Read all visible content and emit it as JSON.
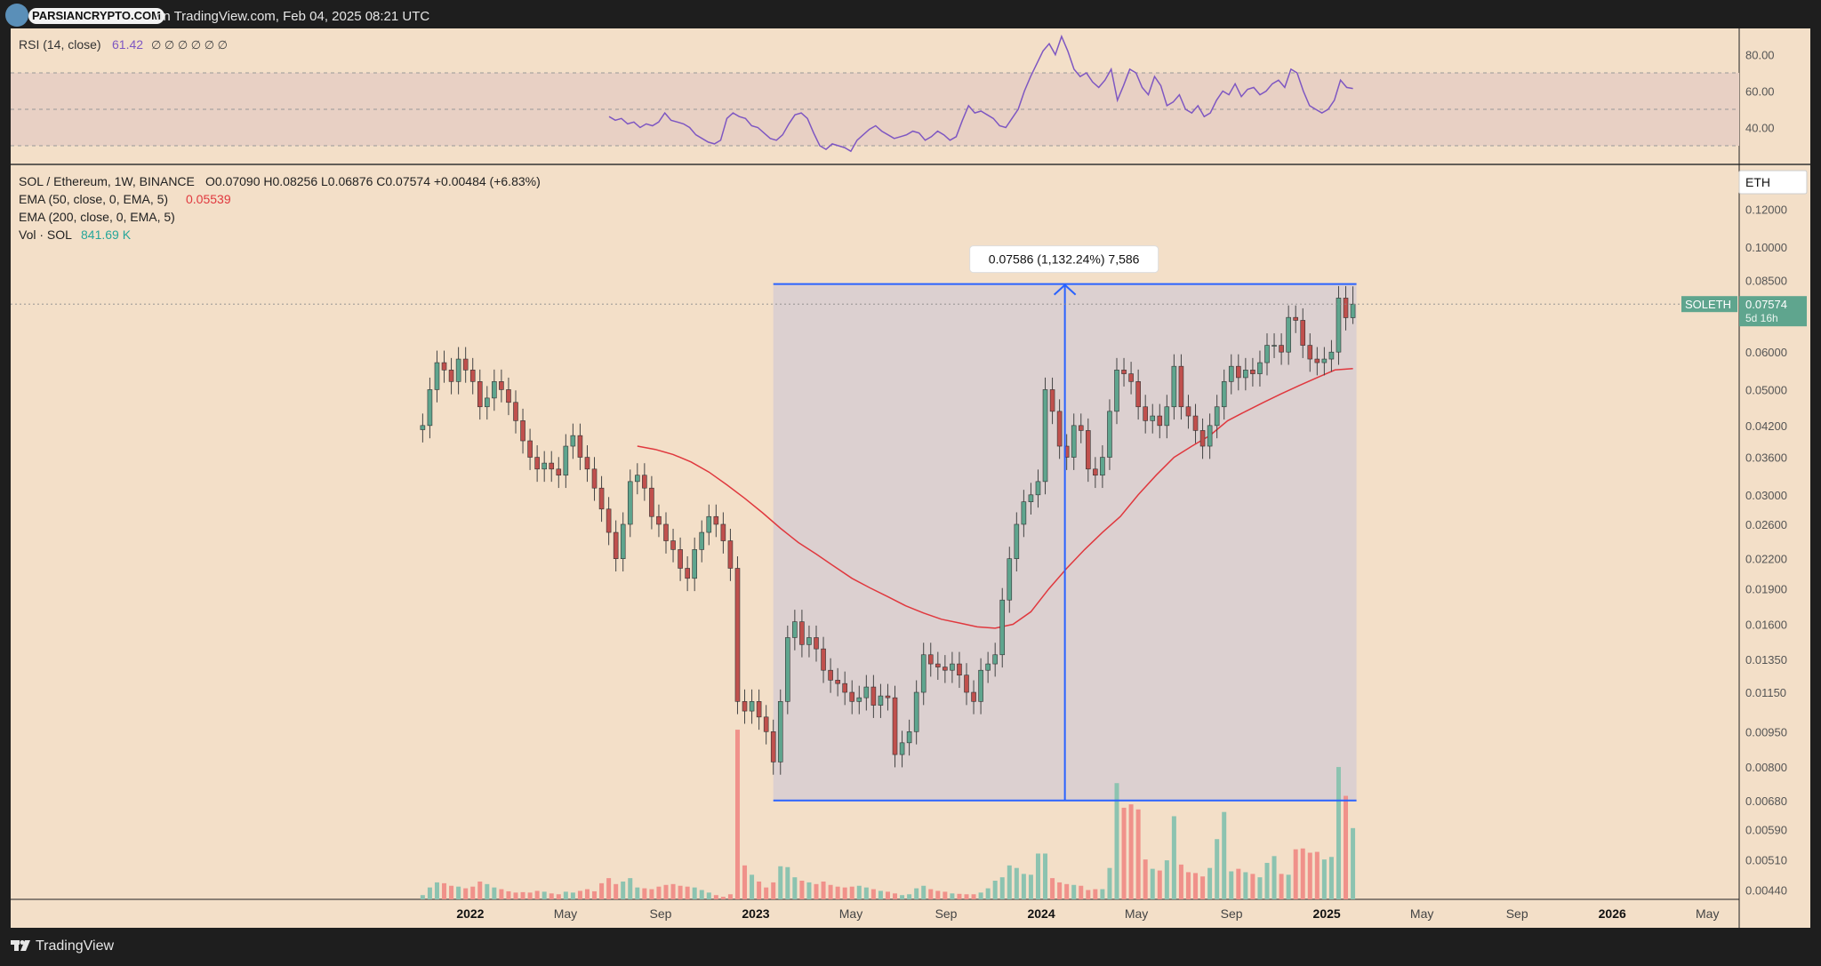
{
  "header": {
    "brand": "PARSIANCRYPTO.COM",
    "published": "on TradingView.com, Feb 04, 2025 08:21 UTC"
  },
  "footer": {
    "brand": "TradingView"
  },
  "colors": {
    "background": "#f3dfc8",
    "up": "#5fa58e",
    "down": "#c0504d",
    "ema50": "#e0383e",
    "rsi": "#7e57c2",
    "measure": "#2962ff",
    "vol_up": "#8cc3b0",
    "vol_down": "#f0918a"
  },
  "rsi_panel": {
    "legend_name": "RSI (14, close)",
    "legend_value": "61.42",
    "legend_extra": "∅ ∅ ∅ ∅ ∅ ∅",
    "ticks": [
      "80.00",
      "60.00",
      "40.00"
    ]
  },
  "main_panel": {
    "symbol_line": "SOL / Ethereum, 1W, BINANCE",
    "ohlc": "O0.07090  H0.08256  L0.06876  C0.07574  +0.00484 (+6.83%)",
    "ema50_label": "EMA (50, close, 0, EMA, 5)",
    "ema50_value": "0.05539",
    "ema200_label": "EMA (200, close, 0, EMA, 5)",
    "vol_label": "Vol · SOL",
    "vol_value": "841.69 K",
    "currency_badge": "ETH",
    "symbol_tag": "SOLETH",
    "price_tag": "0.07574",
    "countdown": "5d 16h",
    "measure_label": "0.07586 (1,132.24%) 7,586"
  },
  "chart_data": [
    {
      "type": "line",
      "name": "RSI",
      "y_ticks": [
        80,
        60,
        40
      ],
      "ylim": [
        20,
        95
      ],
      "bands": [
        70,
        50,
        30
      ],
      "x_range": [
        "2021-10",
        "2025-02"
      ],
      "values": [
        46,
        44,
        45,
        42,
        43,
        40,
        42,
        41,
        43,
        48,
        44,
        43,
        42,
        40,
        36,
        34,
        32,
        31,
        33,
        45,
        48,
        46,
        45,
        41,
        40,
        37,
        34,
        33,
        36,
        42,
        47,
        48,
        45,
        37,
        30,
        28,
        31,
        30,
        29,
        27,
        33,
        36,
        39,
        41,
        38,
        36,
        34,
        35,
        36,
        38,
        37,
        33,
        35,
        38,
        36,
        33,
        35,
        44,
        52,
        48,
        49,
        47,
        45,
        41,
        40,
        45,
        50,
        60,
        68,
        75,
        82,
        86,
        80,
        90,
        82,
        72,
        68,
        70,
        65,
        62,
        66,
        72,
        55,
        63,
        72,
        70,
        62,
        58,
        68,
        63,
        52,
        54,
        58,
        50,
        48,
        52,
        46,
        48,
        55,
        60,
        58,
        64,
        57,
        61,
        62,
        58,
        60,
        64,
        66,
        62,
        72,
        70,
        60,
        52,
        50,
        48,
        50,
        55,
        66,
        62,
        61.4
      ]
    },
    {
      "type": "candlestick",
      "title": "SOL / Ethereum, 1W, BINANCE",
      "x_ticks": [
        "2022",
        "May",
        "Sep",
        "2023",
        "May",
        "Sep",
        "2024",
        "May",
        "Sep",
        "2025",
        "May",
        "Sep",
        "2026",
        "May"
      ],
      "y_ticks": [
        0.12,
        0.1,
        0.085,
        0.06,
        0.05,
        0.042,
        0.036,
        0.03,
        0.026,
        0.022,
        0.019,
        0.016,
        0.0135,
        0.0115,
        0.0095,
        0.008,
        0.0068,
        0.0059,
        0.0051,
        0.0044
      ],
      "y_scale": "log",
      "ylim": [
        0.0043,
        0.13
      ],
      "last": {
        "open": 0.0709,
        "high": 0.08256,
        "low": 0.06876,
        "close": 0.07574,
        "change": 0.00484,
        "change_pct": 6.83
      },
      "close": [
        0.042,
        0.05,
        0.057,
        0.055,
        0.052,
        0.058,
        0.055,
        0.052,
        0.046,
        0.048,
        0.052,
        0.05,
        0.047,
        0.043,
        0.039,
        0.036,
        0.034,
        0.035,
        0.034,
        0.033,
        0.038,
        0.04,
        0.036,
        0.034,
        0.031,
        0.028,
        0.025,
        0.022,
        0.026,
        0.032,
        0.033,
        0.031,
        0.027,
        0.026,
        0.024,
        0.023,
        0.021,
        0.02,
        0.023,
        0.025,
        0.027,
        0.026,
        0.024,
        0.021,
        0.011,
        0.0105,
        0.011,
        0.0102,
        0.0095,
        0.0082,
        0.011,
        0.015,
        0.0162,
        0.0145,
        0.015,
        0.0142,
        0.0128,
        0.0122,
        0.012,
        0.0115,
        0.011,
        0.0112,
        0.0118,
        0.0108,
        0.0113,
        0.0112,
        0.0085,
        0.009,
        0.0095,
        0.0115,
        0.0138,
        0.0132,
        0.013,
        0.0128,
        0.0132,
        0.0125,
        0.0115,
        0.011,
        0.0128,
        0.0132,
        0.0138,
        0.018,
        0.022,
        0.026,
        0.029,
        0.03,
        0.032,
        0.05,
        0.045,
        0.038,
        0.036,
        0.042,
        0.041,
        0.034,
        0.033,
        0.036,
        0.045,
        0.055,
        0.054,
        0.052,
        0.046,
        0.043,
        0.044,
        0.042,
        0.046,
        0.056,
        0.046,
        0.044,
        0.041,
        0.038,
        0.042,
        0.046,
        0.052,
        0.056,
        0.053,
        0.055,
        0.054,
        0.057,
        0.062,
        0.062,
        0.06,
        0.071,
        0.07,
        0.062,
        0.058,
        0.057,
        0.058,
        0.06,
        0.078,
        0.0709,
        0.07574
      ],
      "ema50": [
        0.038,
        0.0374,
        0.0365,
        0.0352,
        0.0335,
        0.0315,
        0.0295,
        0.0275,
        0.0255,
        0.0238,
        0.0225,
        0.0212,
        0.02,
        0.0191,
        0.0183,
        0.0175,
        0.0169,
        0.0164,
        0.0161,
        0.0158,
        0.0157,
        0.016,
        0.017,
        0.019,
        0.021,
        0.023,
        0.025,
        0.027,
        0.03,
        0.033,
        0.036,
        0.038,
        0.04,
        0.043,
        0.045,
        0.047,
        0.049,
        0.051,
        0.053,
        0.055,
        0.05539
      ],
      "volume_max": 2200,
      "volume": [
        50,
        140,
        200,
        190,
        160,
        150,
        130,
        150,
        210,
        180,
        140,
        120,
        95,
        80,
        85,
        80,
        100,
        90,
        70,
        60,
        90,
        80,
        100,
        120,
        95,
        190,
        250,
        180,
        210,
        250,
        140,
        130,
        120,
        150,
        170,
        180,
        160,
        150,
        140,
        110,
        80,
        50,
        30,
        60,
        2000,
        400,
        290,
        210,
        140,
        200,
        390,
        380,
        260,
        220,
        200,
        180,
        210,
        170,
        150,
        140,
        150,
        160,
        140,
        120,
        100,
        90,
        70,
        50,
        60,
        130,
        160,
        120,
        100,
        90,
        70,
        65,
        60,
        60,
        80,
        130,
        220,
        260,
        400,
        370,
        300,
        290,
        540,
        540,
        250,
        200,
        180,
        170,
        160,
        110,
        120,
        120,
        370,
        1370,
        1080,
        1120,
        1060,
        470,
        360,
        340,
        460,
        980,
        410,
        320,
        310,
        270,
        370,
        710,
        1030,
        330,
        360,
        320,
        300,
        260,
        430,
        510,
        300,
        290,
        590,
        600,
        550,
        560,
        470,
        500,
        1560,
        1220,
        840
      ]
    }
  ],
  "measure": {
    "low": 0.0068,
    "high": 0.0835,
    "pct": 1132.24,
    "bars": 7586
  }
}
